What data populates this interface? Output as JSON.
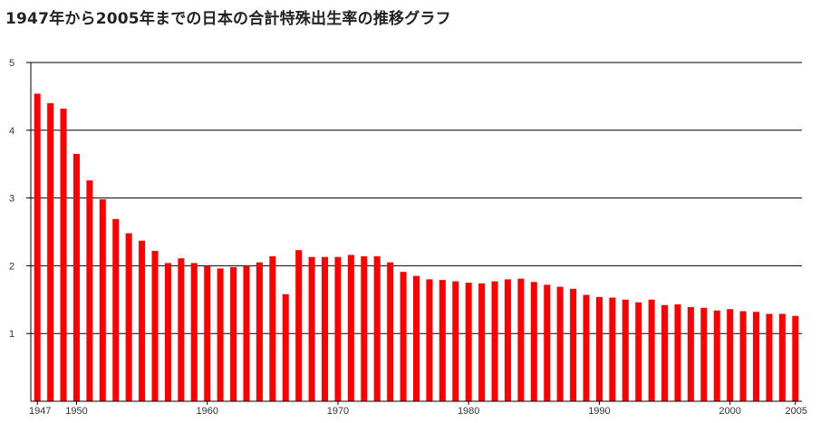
{
  "title": "1947年から2005年までの日本の合計特殊出生率の推移グラフ",
  "colors": {
    "bar": "#ff0000",
    "grid": "#000000",
    "axis": "#000000",
    "text": "#333333"
  },
  "chart_data": {
    "type": "bar",
    "title": "1947年から2005年までの日本の合計特殊出生率の推移グラフ",
    "xlabel": "",
    "ylabel": "",
    "ylim": [
      0,
      5
    ],
    "yticks": [
      1,
      2,
      3,
      4,
      5
    ],
    "xtick_labels": [
      "1947",
      "1950",
      "1960",
      "1970",
      "1980",
      "1990",
      "2000",
      "2005"
    ],
    "grid": "horizontal",
    "categories": [
      "1947",
      "1948",
      "1949",
      "1950",
      "1951",
      "1952",
      "1953",
      "1954",
      "1955",
      "1956",
      "1957",
      "1958",
      "1959",
      "1960",
      "1961",
      "1962",
      "1963",
      "1964",
      "1965",
      "1966",
      "1967",
      "1968",
      "1969",
      "1970",
      "1971",
      "1972",
      "1973",
      "1974",
      "1975",
      "1976",
      "1977",
      "1978",
      "1979",
      "1980",
      "1981",
      "1982",
      "1983",
      "1984",
      "1985",
      "1986",
      "1987",
      "1988",
      "1989",
      "1990",
      "1991",
      "1992",
      "1993",
      "1994",
      "1995",
      "1996",
      "1997",
      "1998",
      "1999",
      "2000",
      "2001",
      "2002",
      "2003",
      "2004",
      "2005"
    ],
    "values": [
      4.54,
      4.4,
      4.32,
      3.65,
      3.26,
      2.98,
      2.69,
      2.48,
      2.37,
      2.22,
      2.04,
      2.11,
      2.04,
      2.0,
      1.96,
      1.98,
      2.0,
      2.05,
      2.14,
      1.58,
      2.23,
      2.13,
      2.13,
      2.13,
      2.16,
      2.14,
      2.14,
      2.05,
      1.91,
      1.85,
      1.8,
      1.79,
      1.77,
      1.75,
      1.74,
      1.77,
      1.8,
      1.81,
      1.76,
      1.72,
      1.69,
      1.66,
      1.57,
      1.54,
      1.53,
      1.5,
      1.46,
      1.5,
      1.42,
      1.43,
      1.39,
      1.38,
      1.34,
      1.36,
      1.33,
      1.32,
      1.29,
      1.29,
      1.26
    ]
  }
}
